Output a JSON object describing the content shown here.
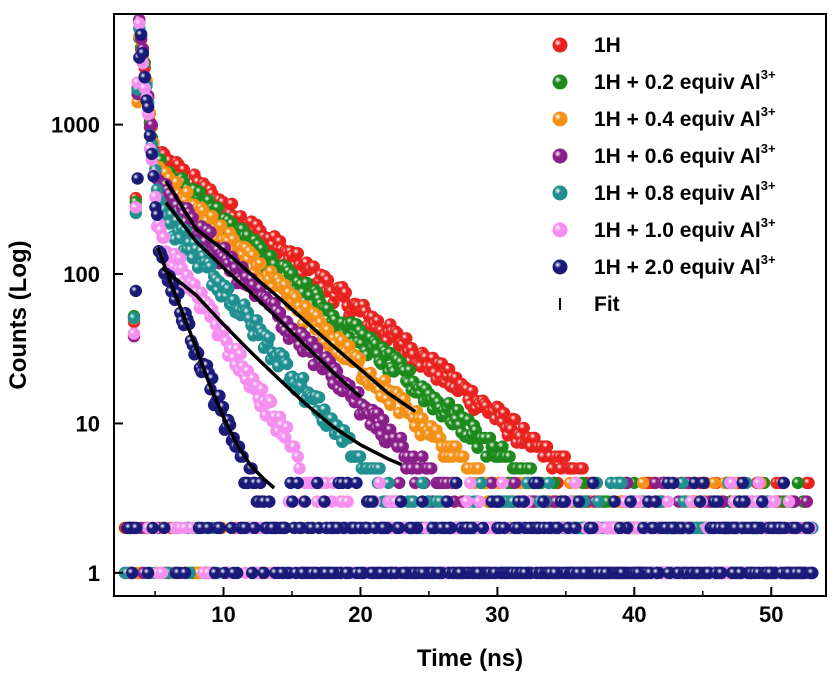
{
  "chart_data": {
    "type": "scatter",
    "title": "",
    "xlabel": "Time (ns)",
    "ylabel": "Counts (Log)",
    "xlim": [
      2,
      54
    ],
    "ylim": [
      0.7,
      5500
    ],
    "yscale": "log",
    "x_ticks": [
      10,
      20,
      30,
      40,
      50
    ],
    "x_tick_labels": [
      "10",
      "20",
      "30",
      "40",
      "50"
    ],
    "y_ticks": [
      1,
      10,
      100,
      1000
    ],
    "y_tick_labels": [
      "1",
      "10",
      "100",
      "1000"
    ],
    "legend_position": "top-right",
    "series": [
      {
        "name": "1H",
        "sup": "",
        "color": "#e8231f",
        "peak_x": 3.8,
        "amp": 5000,
        "tau1": 0.55,
        "a2": 520,
        "x_break": 6.2,
        "tau2": 6.2,
        "floor": 3.5,
        "noise_end": 53
      },
      {
        "name": "1H + 0.2 equiv Al",
        "sup": "3+",
        "color": "#1e8a1e",
        "peak_x": 3.8,
        "amp": 5000,
        "tau1": 0.55,
        "a2": 440,
        "x_break": 6.2,
        "tau2": 5.6,
        "floor": 3.2,
        "noise_end": 53
      },
      {
        "name": "1H + 0.4 equiv Al",
        "sup": "3+",
        "color": "#f39016",
        "peak_x": 3.8,
        "amp": 5000,
        "tau1": 0.55,
        "a2": 380,
        "x_break": 6.2,
        "tau2": 5.0,
        "floor": 3.0,
        "noise_end": 50
      },
      {
        "name": "1H + 0.6 equiv Al",
        "sup": "3+",
        "color": "#8a1f8a",
        "peak_x": 3.8,
        "amp": 5000,
        "tau1": 0.55,
        "a2": 310,
        "x_break": 6.2,
        "tau2": 4.4,
        "floor": 2.8,
        "noise_end": 53
      },
      {
        "name": "1H + 0.8 equiv Al",
        "sup": "3+",
        "color": "#1f8f8f",
        "peak_x": 3.8,
        "amp": 5000,
        "tau1": 0.5,
        "a2": 230,
        "x_break": 6.0,
        "tau2": 3.8,
        "floor": 2.5,
        "noise_end": 50
      },
      {
        "name": "1H + 1.0 equiv Al",
        "sup": "3+",
        "color": "#f48ff0",
        "peak_x": 3.8,
        "amp": 5000,
        "tau1": 0.45,
        "a2": 170,
        "x_break": 5.5,
        "tau2": 3.0,
        "floor": 2.2,
        "noise_end": 53
      },
      {
        "name": "1H + 2.0 equiv Al",
        "sup": "3+",
        "color": "#1a1a7a",
        "peak_x": 3.9,
        "amp": 5200,
        "tau1": 0.4,
        "a2": 140,
        "x_break": 5.2,
        "tau2": 1.9,
        "floor": 2.0,
        "noise_end": 53
      },
      {
        "name": "Fit",
        "sup": "",
        "color": "#000000"
      }
    ],
    "fits": [
      {
        "x": [
          5.8,
          8,
          10,
          12,
          14,
          16,
          18,
          20,
          22,
          24
        ],
        "y": [
          420,
          200,
          145,
          100,
          70,
          48,
          33,
          23,
          16,
          12
        ]
      },
      {
        "x": [
          5.8,
          8,
          10,
          12,
          14,
          16,
          18,
          20
        ],
        "y": [
          300,
          165,
          110,
          75,
          50,
          33,
          22,
          15
        ]
      },
      {
        "x": [
          5.5,
          8,
          10,
          12,
          14,
          16,
          18,
          20,
          22,
          23
        ],
        "y": [
          110,
          72,
          46,
          30,
          20,
          13.5,
          9.5,
          7.2,
          5.8,
          5.3
        ]
      },
      {
        "x": [
          5.2,
          6,
          7,
          8,
          9,
          10,
          11,
          12,
          13,
          13.7
        ],
        "y": [
          150,
          95,
          55,
          32,
          18,
          11,
          7.2,
          5.2,
          4.2,
          3.7
        ]
      }
    ]
  }
}
